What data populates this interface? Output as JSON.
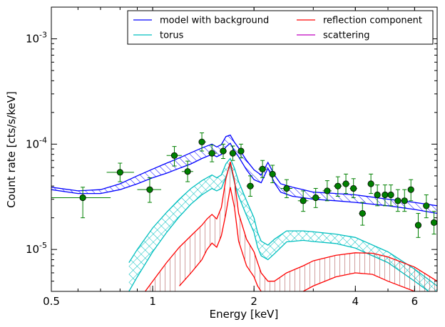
{
  "chart_data": {
    "type": "line",
    "xscale": "log",
    "yscale": "log",
    "xlim": [
      0.5,
      7.0
    ],
    "ylim": [
      4e-06,
      0.002
    ],
    "xlabel": "Energy [keV]",
    "ylabel": "Count rate [cts/s/keV]",
    "x_ticks": [
      {
        "value": 0.5,
        "label": "0.5"
      },
      {
        "value": 1,
        "label": "1"
      },
      {
        "value": 2,
        "label": "2"
      },
      {
        "value": 4,
        "label": "4"
      },
      {
        "value": 6,
        "label": "6"
      }
    ],
    "y_ticks": [
      {
        "value": 1e-05,
        "base": "10",
        "exp": "-5"
      },
      {
        "value": 0.0001,
        "base": "10",
        "exp": "-4"
      },
      {
        "value": 0.001,
        "base": "10",
        "exp": "-3"
      }
    ],
    "legend": {
      "placement": "top-right",
      "entries": [
        {
          "label": "model with background",
          "color": "#0000ff"
        },
        {
          "label": "reflection component",
          "color": "#ff0000"
        },
        {
          "label": "torus",
          "color": "#00bfbf"
        },
        {
          "label": "scattering",
          "color": "#bf00bf"
        }
      ]
    },
    "series": [
      {
        "name": "model with background",
        "color": "#0000ff",
        "hatch": "diagonal",
        "x": [
          0.5,
          0.6,
          0.7,
          0.8,
          0.9,
          1.0,
          1.1,
          1.2,
          1.3,
          1.4,
          1.5,
          1.55,
          1.6,
          1.65,
          1.7,
          1.75,
          1.8,
          1.9,
          2.0,
          2.1,
          2.2,
          2.3,
          2.4,
          2.6,
          2.8,
          3.0,
          3.5,
          4.0,
          5.0,
          6.0,
          7.0
        ],
        "lower": [
          3.7e-05,
          3.4e-05,
          3.4e-05,
          3.7e-05,
          4.2e-05,
          4.8e-05,
          5.3e-05,
          5.9e-05,
          6.5e-05,
          7.3e-05,
          8e-05,
          7.6e-05,
          8e-05,
          9.4e-05,
          0.000102,
          8.6e-05,
          7.6e-05,
          5.7e-05,
          4.6e-05,
          4.3e-05,
          5.9e-05,
          4.3e-05,
          3.5e-05,
          3.2e-05,
          3.1e-05,
          3e-05,
          2.9e-05,
          2.8e-05,
          2.6e-05,
          2.4e-05,
          2.2e-05
        ],
        "upper": [
          3.9e-05,
          3.6e-05,
          3.7e-05,
          4.2e-05,
          5e-05,
          5.8e-05,
          6.6e-05,
          7.4e-05,
          8.3e-05,
          9.2e-05,
          0.0001,
          9.4e-05,
          9.9e-05,
          0.000118,
          0.000122,
          0.000104,
          9.2e-05,
          7e-05,
          5.7e-05,
          5.1e-05,
          6.7e-05,
          5.1e-05,
          4.2e-05,
          3.9e-05,
          3.7e-05,
          3.5e-05,
          3.4e-05,
          3.3e-05,
          3e-05,
          2.8e-05,
          2.6e-05
        ]
      },
      {
        "name": "torus",
        "color": "#00bfbf",
        "hatch": "cross",
        "x": [
          0.85,
          0.9,
          1.0,
          1.1,
          1.2,
          1.3,
          1.4,
          1.5,
          1.55,
          1.6,
          1.65,
          1.7,
          1.75,
          1.8,
          1.9,
          2.0,
          2.05,
          2.1,
          2.2,
          2.3,
          2.5,
          2.8,
          3.0,
          3.5,
          4.0,
          5.0,
          6.0,
          7.0
        ],
        "lower": [
          4e-06,
          5.5e-06,
          9.5e-06,
          1.45e-05,
          2.05e-05,
          2.7e-05,
          3.3e-05,
          3.8e-05,
          3.6e-05,
          3.8e-05,
          4.9e-05,
          6.4e-05,
          4.3e-05,
          3.2e-05,
          2.1e-05,
          1.45e-05,
          1.05e-05,
          8.7e-06,
          8e-06,
          9.1e-06,
          1.18e-05,
          1.22e-05,
          1.19e-05,
          1.14e-05,
          1.03e-05,
          7.5e-06,
          5e-06,
          3.5e-06
        ],
        "upper": [
          7.5e-06,
          1e-05,
          1.6e-05,
          2.25e-05,
          3e-05,
          3.8e-05,
          4.5e-05,
          5.1e-05,
          4.8e-05,
          5.1e-05,
          6.5e-05,
          7.3e-05,
          5.9e-05,
          4.4e-05,
          2.9e-05,
          2e-05,
          1.45e-05,
          1.2e-05,
          1.1e-05,
          1.25e-05,
          1.5e-05,
          1.5e-05,
          1.47e-05,
          1.4e-05,
          1.3e-05,
          9.5e-06,
          6.5e-06,
          4.5e-06
        ]
      },
      {
        "name": "reflection component",
        "color": "#ff0000",
        "hatch": "vertical",
        "x": [
          0.95,
          1.0,
          1.1,
          1.2,
          1.3,
          1.4,
          1.45,
          1.5,
          1.55,
          1.6,
          1.65,
          1.7,
          1.75,
          1.8,
          1.9,
          2.0,
          2.05,
          2.1,
          2.2,
          2.3,
          2.5,
          2.8,
          3.0,
          3.5,
          4.0,
          4.5,
          5.0,
          6.0,
          7.0
        ],
        "lower": [
          null,
          null,
          null,
          4.5e-06,
          6e-06,
          8e-06,
          1e-05,
          1.15e-05,
          1.05e-05,
          1.35e-05,
          2.2e-05,
          3.9e-05,
          2.5e-05,
          1.2e-05,
          7e-06,
          5.5e-06,
          4.5e-06,
          4e-06,
          null,
          null,
          null,
          4e-06,
          4.5e-06,
          5.5e-06,
          6e-06,
          5.8e-06,
          5e-06,
          4e-06,
          null
        ],
        "upper": [
          4e-06,
          5e-06,
          7.5e-06,
          1.05e-05,
          1.35e-05,
          1.7e-05,
          1.95e-05,
          2.15e-05,
          1.95e-05,
          2.5e-05,
          4.7e-05,
          6.8e-05,
          4.5e-05,
          2.2e-05,
          1.25e-05,
          9.5e-06,
          7.5e-06,
          6e-06,
          5e-06,
          5e-06,
          6e-06,
          7e-06,
          7.8e-06,
          8.8e-06,
          9.3e-06,
          9.2e-06,
          8.5e-06,
          6.8e-06,
          5e-06
        ]
      }
    ],
    "data_points": {
      "color": "#008000",
      "points": [
        {
          "x": 0.62,
          "y": 3.1e-05,
          "xlo": 0.5,
          "xhi": 0.75,
          "ylo": 2e-05,
          "yhi": 3.9e-05
        },
        {
          "x": 0.8,
          "y": 5.4e-05,
          "xlo": 0.73,
          "xhi": 0.88,
          "ylo": 4.4e-05,
          "yhi": 6.6e-05
        },
        {
          "x": 0.98,
          "y": 3.7e-05,
          "xlo": 0.9,
          "xhi": 1.06,
          "ylo": 2.8e-05,
          "yhi": 4.8e-05
        },
        {
          "x": 1.16,
          "y": 7.8e-05,
          "xlo": 1.1,
          "xhi": 1.22,
          "ylo": 6.2e-05,
          "yhi": 9.5e-05
        },
        {
          "x": 1.27,
          "y": 5.5e-05,
          "xlo": 1.22,
          "xhi": 1.32,
          "ylo": 4.4e-05,
          "yhi": 6.9e-05
        },
        {
          "x": 1.4,
          "y": 0.000105,
          "xlo": 1.37,
          "xhi": 1.44,
          "ylo": 8.6e-05,
          "yhi": 0.000128
        },
        {
          "x": 1.5,
          "y": 8.2e-05,
          "xlo": 1.46,
          "xhi": 1.55,
          "ylo": 6.8e-05,
          "yhi": 9.8e-05
        },
        {
          "x": 1.62,
          "y": 8.6e-05,
          "xlo": 1.58,
          "xhi": 1.66,
          "ylo": 7.3e-05,
          "yhi": 0.0001
        },
        {
          "x": 1.73,
          "y": 8.2e-05,
          "xlo": 1.69,
          "xhi": 1.77,
          "ylo": 7e-05,
          "yhi": 9.6e-05
        },
        {
          "x": 1.83,
          "y": 8.6e-05,
          "xlo": 1.79,
          "xhi": 1.87,
          "ylo": 7.4e-05,
          "yhi": 0.0001
        },
        {
          "x": 1.95,
          "y": 4e-05,
          "xlo": 1.9,
          "xhi": 2.0,
          "ylo": 3.2e-05,
          "yhi": 5e-05
        },
        {
          "x": 2.12,
          "y": 5.8e-05,
          "xlo": 2.06,
          "xhi": 2.18,
          "ylo": 4.8e-05,
          "yhi": 7e-05
        },
        {
          "x": 2.27,
          "y": 5.2e-05,
          "xlo": 2.22,
          "xhi": 2.32,
          "ylo": 4.3e-05,
          "yhi": 6.3e-05
        },
        {
          "x": 2.5,
          "y": 3.8e-05,
          "xlo": 2.4,
          "xhi": 2.6,
          "ylo": 3.1e-05,
          "yhi": 4.6e-05
        },
        {
          "x": 2.8,
          "y": 2.9e-05,
          "xlo": 2.7,
          "xhi": 2.9,
          "ylo": 2.3e-05,
          "yhi": 3.6e-05
        },
        {
          "x": 3.05,
          "y": 3.1e-05,
          "xlo": 2.95,
          "xhi": 3.15,
          "ylo": 2.5e-05,
          "yhi": 3.8e-05
        },
        {
          "x": 3.3,
          "y": 3.6e-05,
          "xlo": 3.2,
          "xhi": 3.4,
          "ylo": 2.9e-05,
          "yhi": 4.5e-05
        },
        {
          "x": 3.55,
          "y": 4e-05,
          "xlo": 3.45,
          "xhi": 3.65,
          "ylo": 3.2e-05,
          "yhi": 4.9e-05
        },
        {
          "x": 3.75,
          "y": 4.2e-05,
          "xlo": 3.65,
          "xhi": 3.85,
          "ylo": 3.4e-05,
          "yhi": 5.2e-05
        },
        {
          "x": 3.95,
          "y": 3.8e-05,
          "xlo": 3.85,
          "xhi": 4.05,
          "ylo": 3.1e-05,
          "yhi": 4.7e-05
        },
        {
          "x": 4.2,
          "y": 2.2e-05,
          "xlo": 4.1,
          "xhi": 4.3,
          "ylo": 1.7e-05,
          "yhi": 2.8e-05
        },
        {
          "x": 4.45,
          "y": 4.2e-05,
          "xlo": 4.35,
          "xhi": 4.55,
          "ylo": 3.4e-05,
          "yhi": 5.2e-05
        },
        {
          "x": 4.65,
          "y": 3.3e-05,
          "xlo": 4.55,
          "xhi": 4.75,
          "ylo": 2.6e-05,
          "yhi": 4.1e-05
        },
        {
          "x": 4.9,
          "y": 3.3e-05,
          "xlo": 4.8,
          "xhi": 5.0,
          "ylo": 2.6e-05,
          "yhi": 4.1e-05
        },
        {
          "x": 5.1,
          "y": 3.3e-05,
          "xlo": 5.0,
          "xhi": 5.2,
          "ylo": 2.6e-05,
          "yhi": 4.1e-05
        },
        {
          "x": 5.35,
          "y": 2.9e-05,
          "xlo": 5.25,
          "xhi": 5.45,
          "ylo": 2.3e-05,
          "yhi": 3.7e-05
        },
        {
          "x": 5.6,
          "y": 2.9e-05,
          "xlo": 5.5,
          "xhi": 5.7,
          "ylo": 2.3e-05,
          "yhi": 3.7e-05
        },
        {
          "x": 5.85,
          "y": 3.7e-05,
          "xlo": 5.75,
          "xhi": 5.95,
          "ylo": 2.9e-05,
          "yhi": 4.6e-05
        },
        {
          "x": 6.15,
          "y": 1.7e-05,
          "xlo": 6.05,
          "xhi": 6.25,
          "ylo": 1.3e-05,
          "yhi": 2.2e-05
        },
        {
          "x": 6.5,
          "y": 2.6e-05,
          "xlo": 6.35,
          "xhi": 6.65,
          "ylo": 2e-05,
          "yhi": 3.3e-05
        },
        {
          "x": 6.85,
          "y": 1.8e-05,
          "xlo": 6.7,
          "xhi": 7.0,
          "ylo": 1.4e-05,
          "yhi": 2.3e-05
        }
      ]
    }
  }
}
